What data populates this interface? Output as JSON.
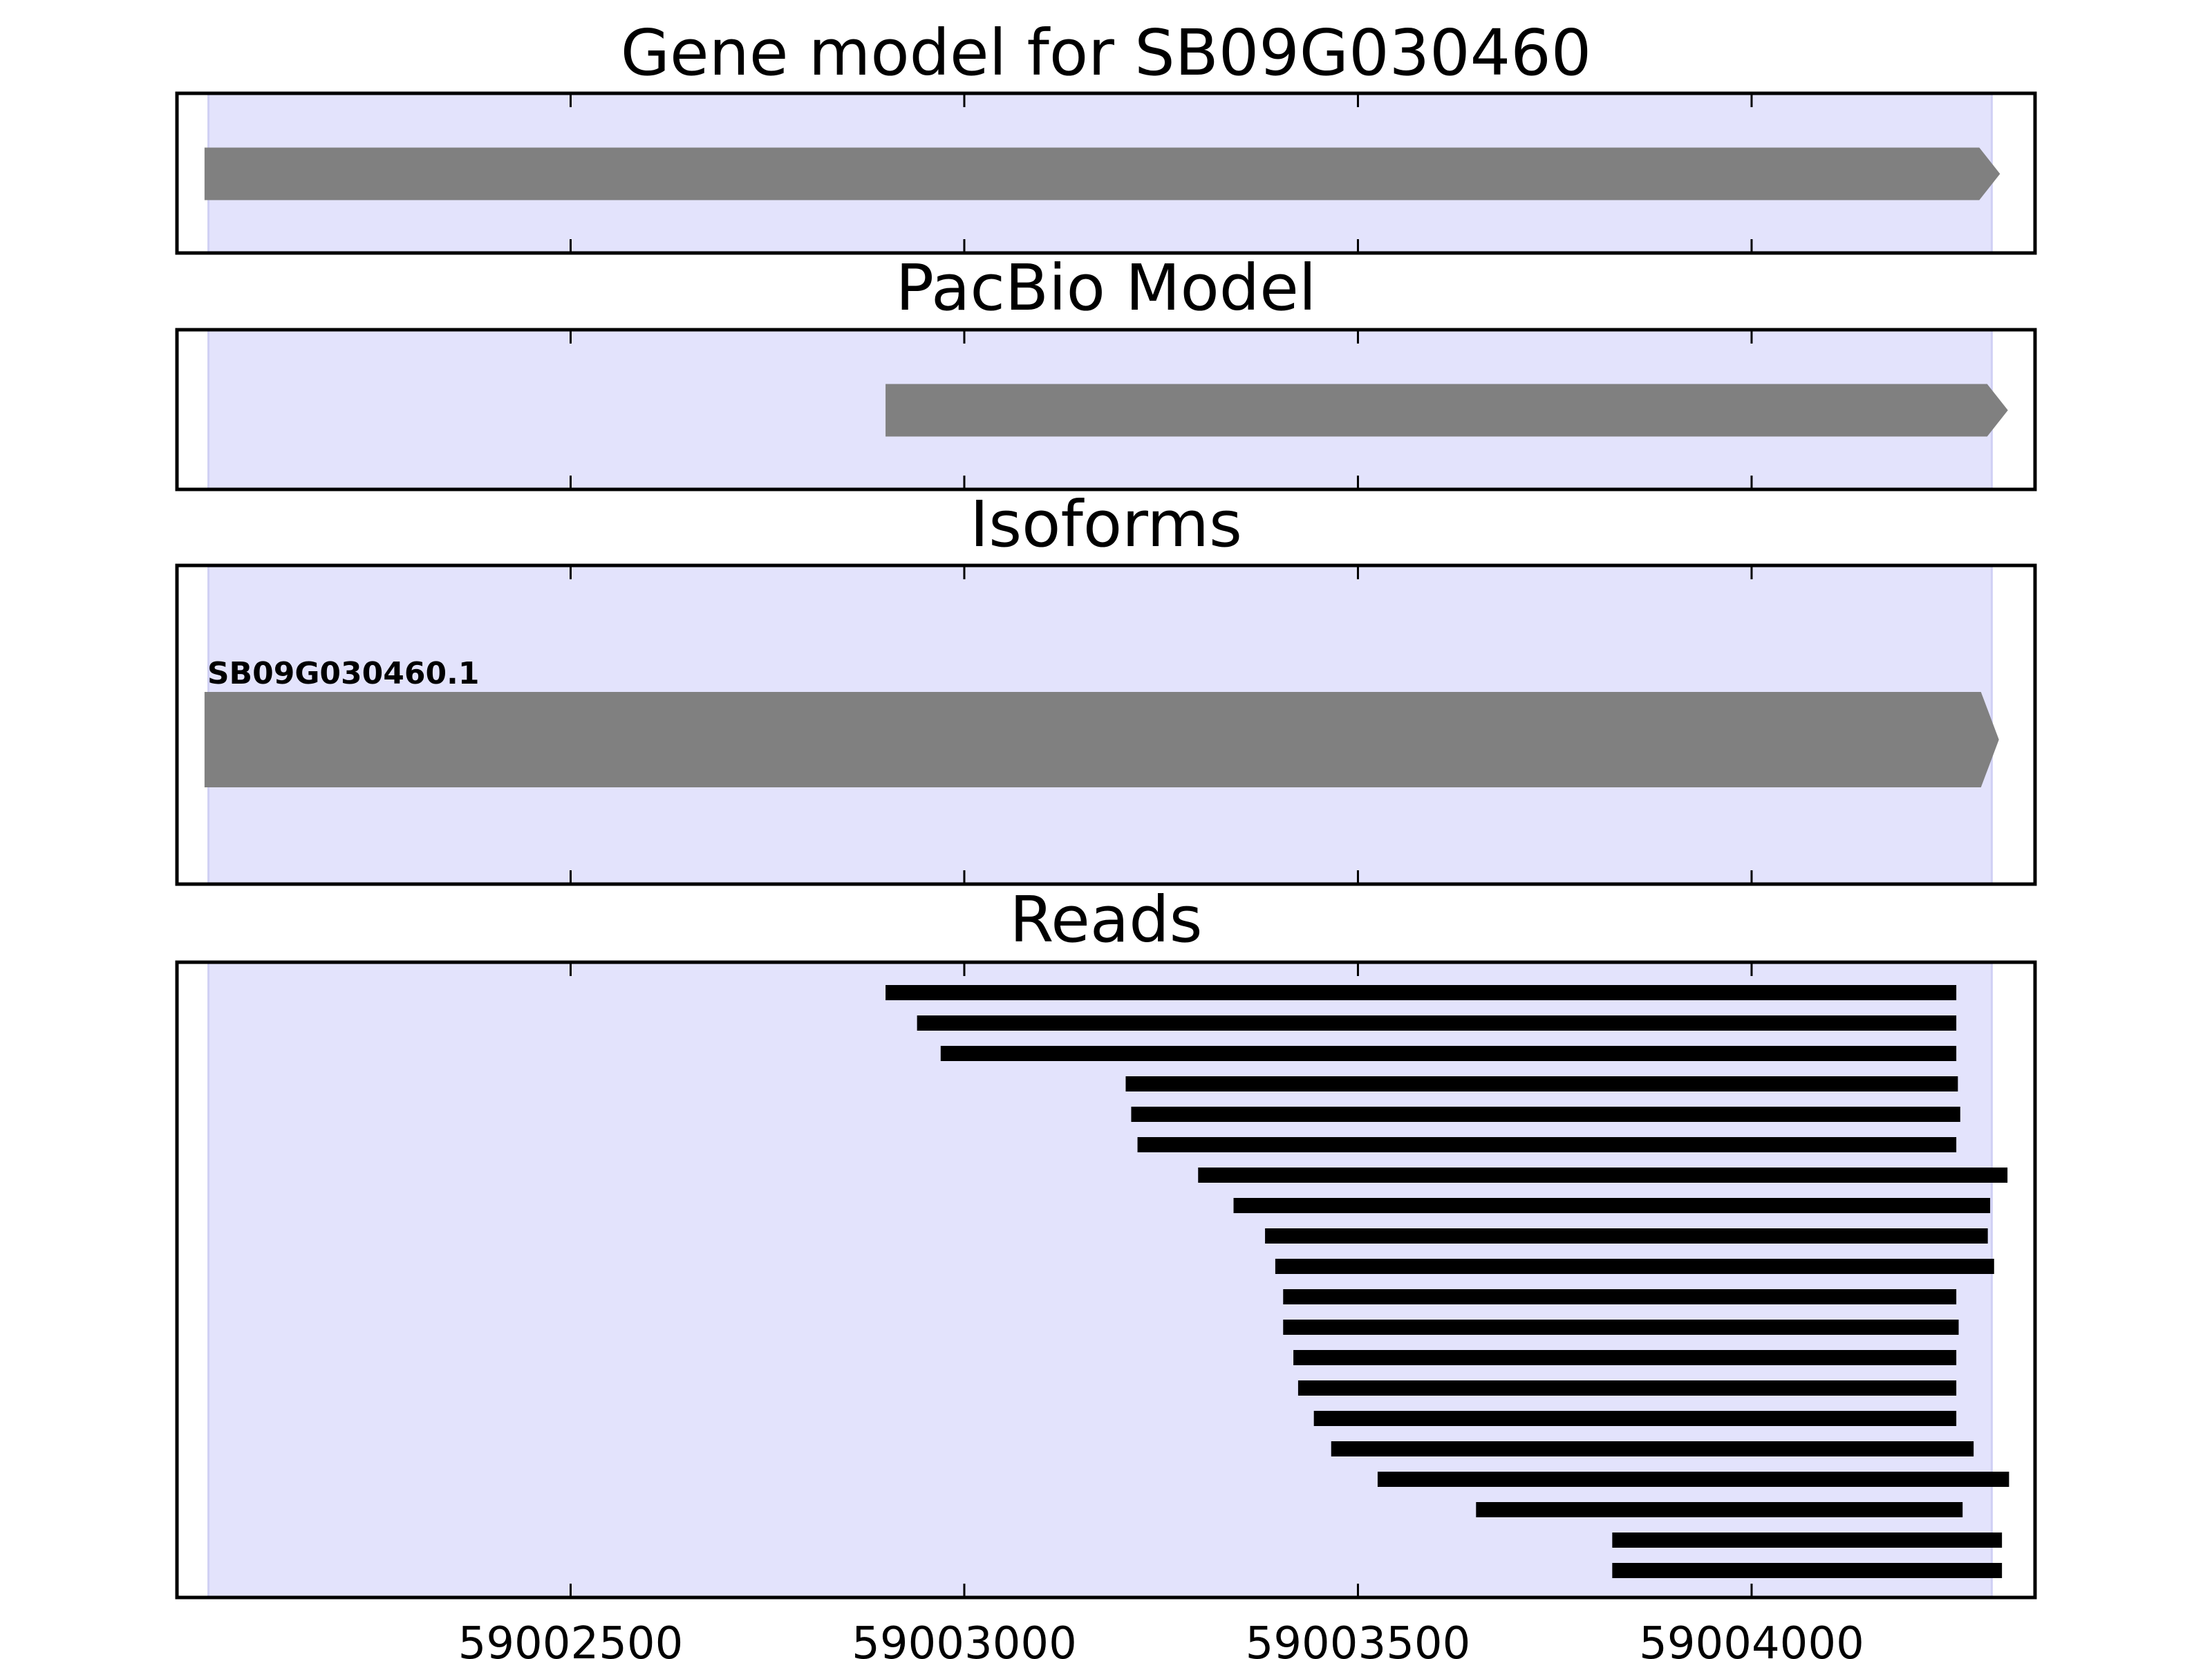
{
  "chart_data": {
    "type": "gene-track",
    "x_ticks": [
      59002500,
      59003000,
      59003500,
      59004000
    ],
    "xlim": [
      59002000,
      59004360
    ],
    "highlight_region": {
      "start": 59002040,
      "end": 59004305,
      "color": "#e3e3fc"
    },
    "colors": {
      "feature": "#808080",
      "read": "#000000"
    },
    "panels": [
      {
        "id": "gene",
        "title": "Gene model for SB09G030460",
        "features": [
          {
            "start": 59002035,
            "end": 59004305,
            "strand": "+"
          }
        ]
      },
      {
        "id": "pacbio",
        "title": "PacBio Model",
        "features": [
          {
            "start": 59002900,
            "end": 59004315,
            "strand": "+"
          }
        ]
      },
      {
        "id": "isoforms",
        "title": "Isoforms",
        "features": [
          {
            "label": "SB09G030460.1",
            "start": 59002035,
            "end": 59004305,
            "strand": "+"
          }
        ]
      },
      {
        "id": "reads",
        "title": "Reads",
        "reads": [
          [
            59002900,
            59004260
          ],
          [
            59002940,
            59004260
          ],
          [
            59002970,
            59004260
          ],
          [
            59003205,
            59004262
          ],
          [
            59003212,
            59004265
          ],
          [
            59003220,
            59004260
          ],
          [
            59003297,
            59004325
          ],
          [
            59003342,
            59004303
          ],
          [
            59003382,
            59004300
          ],
          [
            59003395,
            59004308
          ],
          [
            59003405,
            59004260
          ],
          [
            59003405,
            59004263
          ],
          [
            59003418,
            59004260
          ],
          [
            59003424,
            59004260
          ],
          [
            59003444,
            59004260
          ],
          [
            59003466,
            59004282
          ],
          [
            59003525,
            59004327
          ],
          [
            59003650,
            59004268
          ],
          [
            59003823,
            59004318
          ],
          [
            59003823,
            59004318
          ]
        ]
      }
    ]
  }
}
